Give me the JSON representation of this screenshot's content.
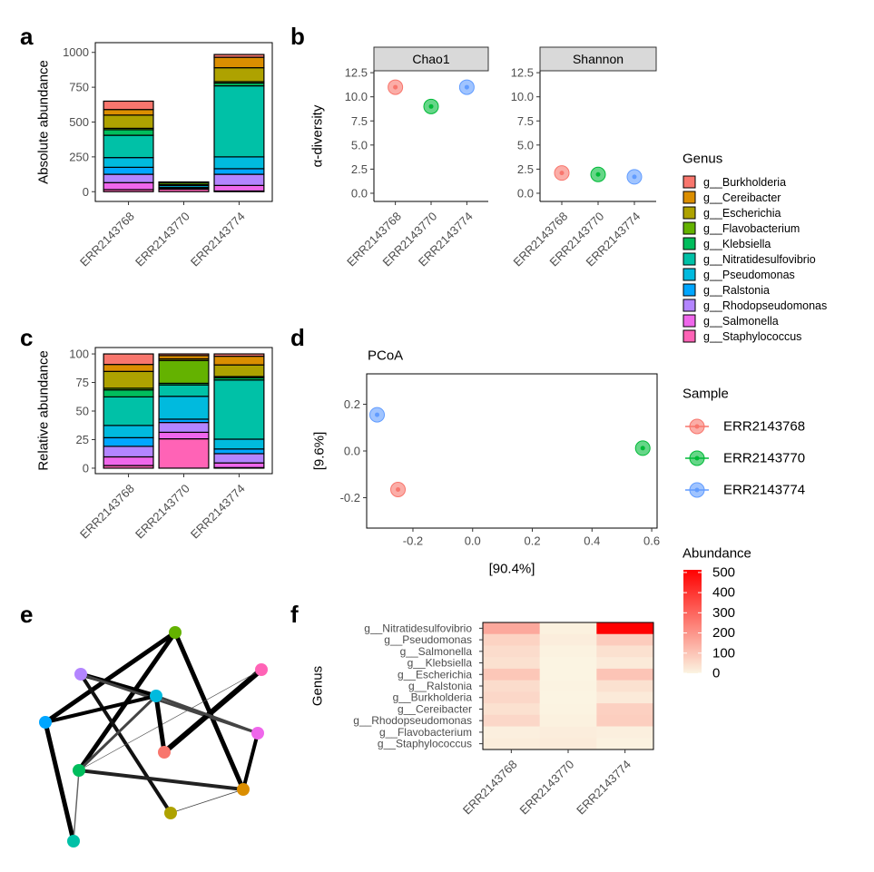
{
  "panels": [
    "a",
    "b",
    "c",
    "d",
    "e",
    "f"
  ],
  "chart_data": [
    {
      "type": "stacked-bar",
      "ylabel": "Absolute abundance",
      "categories": [
        "ERR2143768",
        "ERR2143770",
        "ERR2143774"
      ],
      "ylim": [
        -70,
        1070
      ],
      "yticks": [
        0,
        250,
        500,
        750,
        1000
      ],
      "legend_title": "Genus",
      "series": [
        {
          "name": "g__Burkholderia",
          "color": "#F8766D",
          "values": [
            60,
            1,
            20
          ]
        },
        {
          "name": "g__Cereibacter",
          "color": "#DB8E00",
          "values": [
            40,
            2,
            75
          ]
        },
        {
          "name": "g__Escherichia",
          "color": "#AEA200",
          "values": [
            95,
            1,
            100
          ]
        },
        {
          "name": "g__Flavobacterium",
          "color": "#64B200",
          "values": [
            10,
            14,
            10
          ]
        },
        {
          "name": "g__Klebsiella",
          "color": "#00BD5C",
          "values": [
            40,
            1,
            20
          ]
        },
        {
          "name": "g__Nitratidesulfovibrio",
          "color": "#00C1A7",
          "values": [
            160,
            7,
            510
          ]
        },
        {
          "name": "g__Pseudomonas",
          "color": "#00BADE",
          "values": [
            70,
            14,
            85
          ]
        },
        {
          "name": "g__Ralstonia",
          "color": "#00A6FF",
          "values": [
            50,
            2,
            40
          ]
        },
        {
          "name": "g__Rhodopseudomonas",
          "color": "#B385FF",
          "values": [
            60,
            6,
            80
          ]
        },
        {
          "name": "g__Salmonella",
          "color": "#EF67EB",
          "values": [
            50,
            4,
            40
          ]
        },
        {
          "name": "g__Staphylococcus",
          "color": "#FF63B6",
          "values": [
            15,
            18,
            5
          ]
        }
      ]
    },
    {
      "type": "facet-scatter",
      "ylabel": "α-diversity",
      "categories": [
        "ERR2143768",
        "ERR2143770",
        "ERR2143774"
      ],
      "colors": [
        "#F8766D",
        "#00BA38",
        "#619CFF"
      ],
      "ylim": [
        -0.85,
        12.7
      ],
      "yticks": [
        {
          "value": 0,
          "label": "0.0"
        },
        2.5,
        {
          "value": 5,
          "label": "5.0"
        },
        7.5,
        {
          "value": 10,
          "label": "10.0"
        },
        12.5
      ],
      "facets": [
        {
          "name": "Chao1",
          "values": [
            11,
            9,
            11
          ]
        },
        {
          "name": "Shannon",
          "values": [
            2.1,
            1.95,
            1.7
          ]
        }
      ]
    },
    {
      "type": "stacked-bar",
      "ylabel": "Relative abundance",
      "categories": [
        "ERR2143768",
        "ERR2143770",
        "ERR2143774"
      ],
      "ylim": [
        -4.8,
        105.6
      ],
      "yticks": [
        0,
        25,
        50,
        75,
        100
      ],
      "series": [
        {
          "color": "#F8766D",
          "values": [
            9.2,
            1.4,
            2.0
          ]
        },
        {
          "color": "#DB8E00",
          "values": [
            6.1,
            2.9,
            7.6
          ]
        },
        {
          "color": "#AEA200",
          "values": [
            14.7,
            1.4,
            10.2
          ]
        },
        {
          "color": "#64B200",
          "values": [
            1.5,
            20,
            1.0
          ]
        },
        {
          "color": "#00BD5C",
          "values": [
            6.1,
            1.4,
            2.0
          ]
        },
        {
          "color": "#00C1A7",
          "values": [
            25.0,
            10,
            51.8
          ]
        },
        {
          "color": "#00BADE",
          "values": [
            10.7,
            20,
            8.6
          ]
        },
        {
          "color": "#00A6FF",
          "values": [
            7.6,
            2.9,
            4.1
          ]
        },
        {
          "color": "#B385FF",
          "values": [
            9.2,
            8.6,
            8.1
          ]
        },
        {
          "color": "#EF67EB",
          "values": [
            7.6,
            5.7,
            4.1
          ]
        },
        {
          "color": "#FF63B6",
          "values": [
            2.3,
            25.7,
            0.5
          ]
        }
      ]
    },
    {
      "type": "scatter",
      "title": "PCoA",
      "xlabel": "[90.4%]",
      "ylabel": "[9.6%]",
      "legend_title": "Sample",
      "xlim": [
        -0.355,
        0.618
      ],
      "ylim": [
        -0.33,
        0.33
      ],
      "xticks": [
        -0.2,
        {
          "value": 0,
          "label": "0.0"
        },
        0.2,
        0.4,
        0.6
      ],
      "yticks": [
        -0.2,
        {
          "value": 0,
          "label": "0.0"
        },
        0.2
      ],
      "series": [
        {
          "name": "ERR2143768",
          "color": "#F8766D",
          "x": [
            -0.25
          ],
          "values": [
            -0.165
          ]
        },
        {
          "name": "ERR2143770",
          "color": "#00BA38",
          "x": [
            0.57
          ],
          "values": [
            0.012
          ]
        },
        {
          "name": "ERR2143774",
          "color": "#619CFF",
          "x": [
            -0.32
          ],
          "values": [
            0.155
          ]
        }
      ]
    },
    {
      "type": "heatmap",
      "ylabel": "Genus",
      "categories": [
        "ERR2143768",
        "ERR2143770",
        "ERR2143774"
      ],
      "rows": [
        "g__Nitratidesulfovibrio",
        "g__Pseudomonas",
        "g__Salmonella",
        "g__Klebsiella",
        "g__Escherichia",
        "g__Ralstonia",
        "g__Burkholderia",
        "g__Cereibacter",
        "g__Rhodopseudomonas",
        "g__Flavobacterium",
        "g__Staphylococcus"
      ],
      "values": [
        [
          160,
          7,
          510
        ],
        [
          70,
          14,
          85
        ],
        [
          50,
          4,
          40
        ],
        [
          40,
          1,
          20
        ],
        [
          95,
          1,
          100
        ],
        [
          50,
          2,
          40
        ],
        [
          60,
          1,
          20
        ],
        [
          40,
          2,
          75
        ],
        [
          60,
          6,
          80
        ],
        [
          10,
          14,
          10
        ],
        [
          15,
          18,
          5
        ]
      ],
      "colorbar": {
        "title": "Abundance",
        "lim": [
          0,
          513
        ],
        "ticks": [
          0,
          100,
          200,
          300,
          400,
          500
        ],
        "colors": [
          "#FBF4E2",
          "#FF0000"
        ]
      }
    }
  ]
}
